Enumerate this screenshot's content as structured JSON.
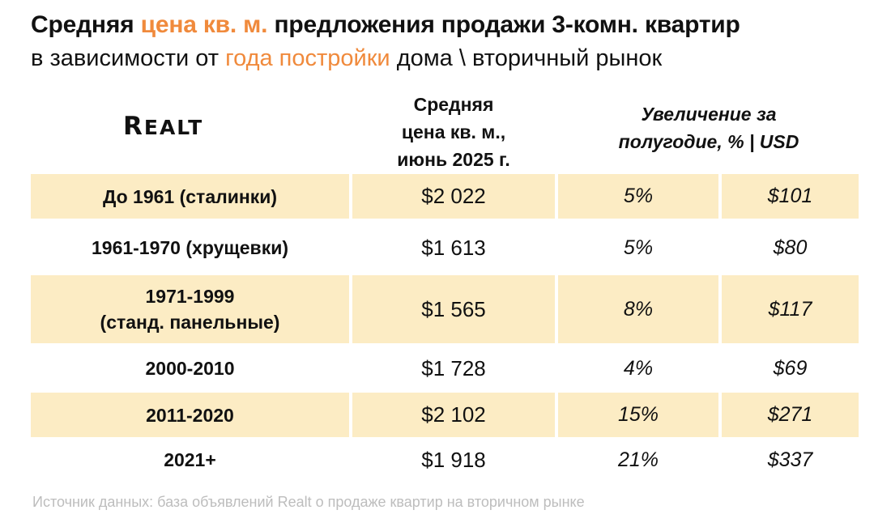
{
  "title": {
    "line1_part1": "Средняя ",
    "line1_highlight": "цена кв. м.",
    "line1_part2": " предложения продажи 3-комн. квартир",
    "line2_part1": "в зависимости от ",
    "line2_highlight": "года постройки",
    "line2_part2": " дома \\ вторичный рынок"
  },
  "logo": {
    "big_r": "R",
    "rest": "EALT"
  },
  "headers": {
    "price": [
      "Средняя",
      "цена кв. м.,",
      "июнь 2025 г."
    ],
    "increase": [
      "Увеличение за",
      "полугодие, % | USD"
    ]
  },
  "rows": [
    {
      "period_lines": [
        "До 1961 (сталинки)"
      ],
      "price": "$2 022",
      "pct": "5%",
      "usd": "$101"
    },
    {
      "period_lines": [
        "1961-1970 (хрущевки)"
      ],
      "price": "$1 613",
      "pct": "5%",
      "usd": "$80"
    },
    {
      "period_lines": [
        "1971-1999",
        "(станд. панельные)"
      ],
      "price": "$1 565",
      "pct": "8%",
      "usd": "$117"
    },
    {
      "period_lines": [
        "2000-2010"
      ],
      "price": "$1 728",
      "pct": "4%",
      "usd": "$69"
    },
    {
      "period_lines": [
        "2011-2020"
      ],
      "price": "$2 102",
      "pct": "15%",
      "usd": "$271"
    },
    {
      "period_lines": [
        "2021+"
      ],
      "price": "$1 918",
      "pct": "21%",
      "usd": "$337"
    }
  ],
  "source": "Источник данных: база объявлений Realt о продаже квартир на вторичном рынке",
  "colors": {
    "accent": "#f08a3c",
    "row_shade": "#fcecc4",
    "source_text": "#bdbdbd"
  }
}
